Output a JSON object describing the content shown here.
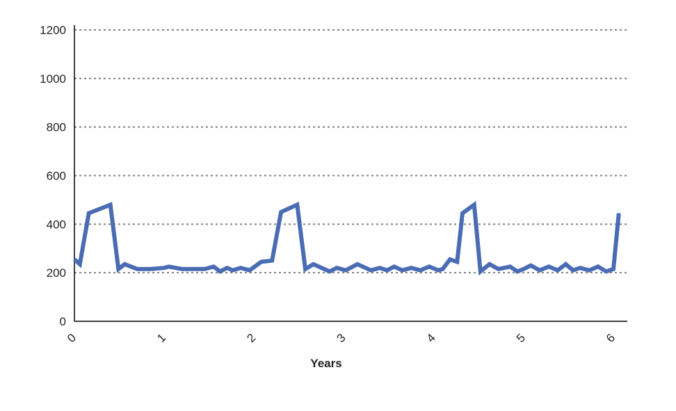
{
  "chart_data": {
    "type": "line",
    "title": "",
    "xlabel": "Years",
    "ylabel": "",
    "xlim": [
      0,
      6
    ],
    "ylim": [
      0,
      1200
    ],
    "y_ticks": [
      0,
      200,
      400,
      600,
      800,
      1000,
      1200
    ],
    "x_ticks": [
      0,
      1,
      2,
      3,
      4,
      5,
      6
    ],
    "grid": "horizontal dotted",
    "legend": "none",
    "series": [
      {
        "color": "#4a6cb5",
        "x": [
          0,
          0.06,
          0.16,
          0.4,
          0.49,
          0.56,
          0.7,
          0.85,
          1.0,
          1.05,
          1.2,
          1.35,
          1.45,
          1.55,
          1.62,
          1.7,
          1.76,
          1.85,
          1.95,
          2.08,
          2.2,
          2.3,
          2.48,
          2.57,
          2.66,
          2.84,
          2.92,
          3.02,
          3.15,
          3.3,
          3.4,
          3.48,
          3.56,
          3.65,
          3.75,
          3.85,
          3.95,
          4.05,
          4.1,
          4.18,
          4.26,
          4.32,
          4.45,
          4.52,
          4.62,
          4.72,
          4.85,
          4.93,
          5.0,
          5.08,
          5.18,
          5.28,
          5.38,
          5.47,
          5.55,
          5.63,
          5.73,
          5.83,
          5.92,
          6.0,
          6.06
        ],
        "values": [
          255,
          235,
          445,
          480,
          215,
          235,
          215,
          215,
          220,
          225,
          215,
          215,
          215,
          225,
          205,
          220,
          210,
          220,
          210,
          245,
          250,
          450,
          480,
          215,
          235,
          205,
          220,
          210,
          235,
          210,
          220,
          210,
          225,
          210,
          220,
          210,
          225,
          210,
          215,
          255,
          245,
          445,
          480,
          205,
          235,
          215,
          225,
          205,
          215,
          230,
          210,
          225,
          210,
          235,
          210,
          220,
          210,
          225,
          205,
          215,
          445
        ]
      }
    ]
  }
}
